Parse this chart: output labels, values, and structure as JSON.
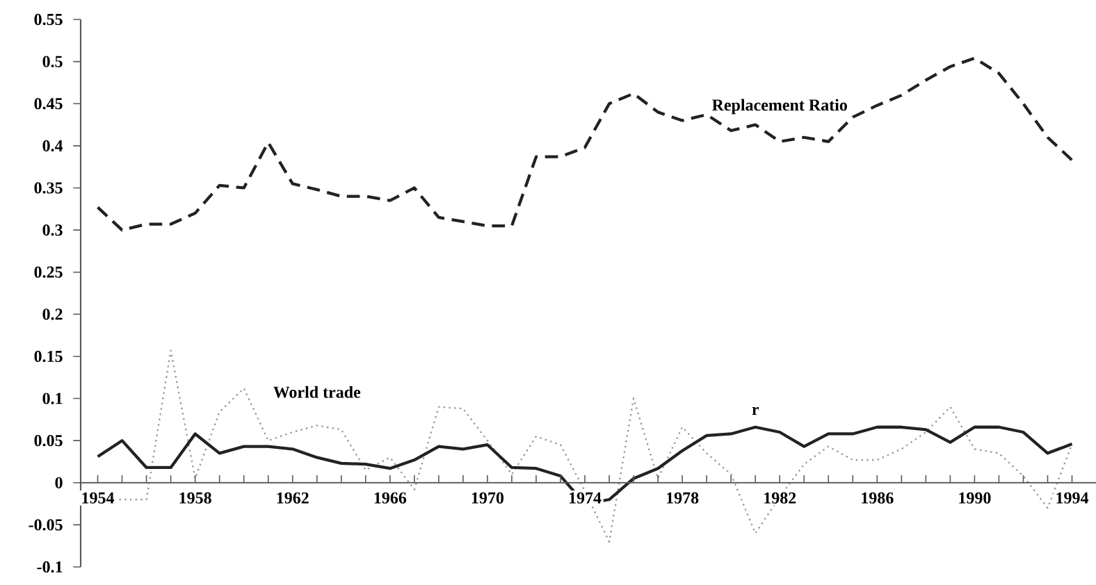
{
  "chart_data": {
    "type": "line",
    "x": [
      1954,
      1955,
      1956,
      1957,
      1958,
      1959,
      1960,
      1961,
      1962,
      1963,
      1964,
      1965,
      1966,
      1967,
      1968,
      1969,
      1970,
      1971,
      1972,
      1973,
      1974,
      1975,
      1976,
      1977,
      1978,
      1979,
      1980,
      1981,
      1982,
      1983,
      1984,
      1985,
      1986,
      1987,
      1988,
      1989,
      1990,
      1991,
      1992,
      1993,
      1994
    ],
    "series": [
      {
        "name": "Replacement Ratio",
        "color": "#222222",
        "line_style": "dashed",
        "values": [
          0.327,
          0.3,
          0.307,
          0.307,
          0.32,
          0.353,
          0.35,
          0.404,
          0.355,
          0.348,
          0.34,
          0.34,
          0.335,
          0.35,
          0.315,
          0.31,
          0.305,
          0.305,
          0.387,
          0.387,
          0.398,
          0.45,
          0.462,
          0.44,
          0.43,
          0.437,
          0.418,
          0.425,
          0.405,
          0.41,
          0.405,
          0.434,
          0.448,
          0.46,
          0.478,
          0.494,
          0.504,
          0.486,
          0.45,
          0.41,
          0.383
        ]
      },
      {
        "name": "World trade",
        "color": "#999999",
        "line_style": "dotted",
        "values": [
          -0.02,
          -0.02,
          -0.02,
          0.157,
          0.005,
          0.084,
          0.112,
          0.05,
          0.06,
          0.068,
          0.063,
          0.015,
          0.03,
          -0.008,
          0.09,
          0.088,
          0.05,
          0.01,
          0.055,
          0.045,
          -0.01,
          -0.07,
          0.1,
          0.005,
          0.066,
          0.035,
          0.01,
          -0.06,
          -0.017,
          0.022,
          0.043,
          0.027,
          0.027,
          0.04,
          0.06,
          0.09,
          0.04,
          0.035,
          0.008,
          -0.03,
          0.046
        ]
      },
      {
        "name": "r",
        "color": "#222222",
        "line_style": "solid",
        "values": [
          0.031,
          0.05,
          0.018,
          0.018,
          0.058,
          0.035,
          0.043,
          0.043,
          0.04,
          0.03,
          0.023,
          0.022,
          0.017,
          0.027,
          0.043,
          0.04,
          0.045,
          0.018,
          0.017,
          0.008,
          -0.025,
          -0.02,
          0.005,
          0.017,
          0.038,
          0.056,
          0.058,
          0.066,
          0.06,
          0.043,
          0.058,
          0.058,
          0.066,
          0.066,
          0.063,
          0.048,
          0.066,
          0.066,
          0.06,
          0.035,
          0.046
        ]
      }
    ],
    "xlim": [
      1953.3,
      1995.1
    ],
    "ylim": [
      -0.1,
      0.55
    ],
    "xticks": [
      1954,
      1958,
      1962,
      1966,
      1970,
      1974,
      1978,
      1982,
      1986,
      1990,
      1994
    ],
    "yticks": [
      -0.1,
      -0.05,
      0,
      0.05,
      0.1,
      0.15,
      0.2,
      0.25,
      0.3,
      0.35,
      0.4,
      0.45,
      0.5,
      0.55
    ],
    "marker": "none",
    "grid": false
  }
}
